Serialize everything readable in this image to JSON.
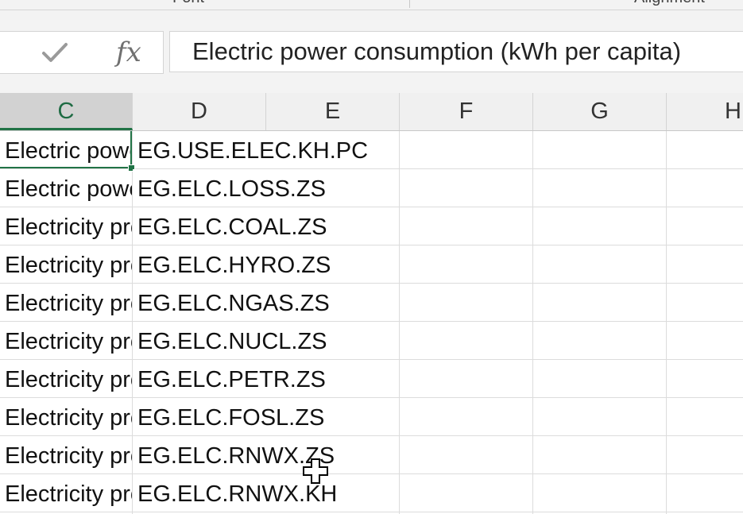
{
  "ribbon": {
    "groups": [
      "Font",
      "Alignment"
    ]
  },
  "formula_bar": {
    "confirm_icon": "check-icon",
    "function_icon_label": "fx",
    "value": "Electric power consumption (kWh per capita)"
  },
  "columns": [
    "C",
    "D",
    "E",
    "F",
    "G",
    "H"
  ],
  "active_column": "C",
  "rows": [
    {
      "c": "Electric power consumption (kWh per capita)",
      "d": "EG.USE.ELEC.KH.PC"
    },
    {
      "c": "Electric power transmission and distribution losses (% of output)",
      "d": "EG.ELC.LOSS.ZS"
    },
    {
      "c": "Electricity production from coal sources (% of total)",
      "d": "EG.ELC.COAL.ZS"
    },
    {
      "c": "Electricity production from hydroelectric sources (% of total)",
      "d": "EG.ELC.HYRO.ZS"
    },
    {
      "c": "Electricity production from natural gas sources (% of total)",
      "d": "EG.ELC.NGAS.ZS"
    },
    {
      "c": "Electricity production from nuclear sources (% of total)",
      "d": "EG.ELC.NUCL.ZS"
    },
    {
      "c": "Electricity production from oil sources (% of total)",
      "d": "EG.ELC.PETR.ZS"
    },
    {
      "c": "Electricity production from oil, gas and coal sources (% of total)",
      "d": "EG.ELC.FOSL.ZS"
    },
    {
      "c": "Electricity production from renewable sources, excluding hydroelectric (% of total)",
      "d": "EG.ELC.RNWX.ZS"
    },
    {
      "c": "Electricity production from renewable sources, excluding hydroelectric (kWh)",
      "d": "EG.ELC.RNWX.KH"
    }
  ],
  "colors": {
    "accent": "#217346",
    "gridline": "#dcdcdc",
    "header_bg": "#f0f0f0"
  },
  "cursor_icon": "cell-select-cross-icon"
}
